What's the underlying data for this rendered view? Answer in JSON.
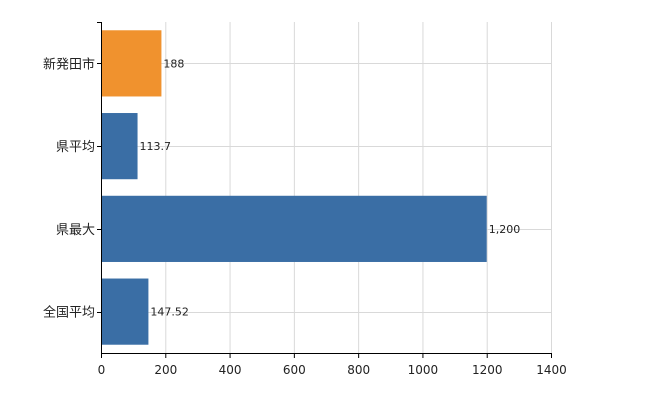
{
  "chart_data": {
    "type": "bar",
    "orientation": "horizontal",
    "title": "",
    "xlabel": "",
    "ylabel": "",
    "categories": [
      "新発田市",
      "県平均",
      "県最大",
      "全国平均"
    ],
    "values": [
      188,
      113.7,
      1200,
      147.52
    ],
    "data_labels": [
      "188",
      "113.7",
      "1,200",
      "147.52"
    ],
    "bar_colors": [
      "#f0922e",
      "#3a6ea5",
      "#3a6ea5",
      "#3a6ea5"
    ],
    "xlim": [
      0,
      1400
    ],
    "xticks": [
      0,
      200,
      400,
      600,
      800,
      1000,
      1200,
      1400
    ],
    "xtick_labels": [
      "0",
      "200",
      "400",
      "600",
      "800",
      "1000",
      "1200",
      "1400"
    ],
    "grid": true,
    "grid_color": "#d9d9d9",
    "legend": "none"
  }
}
